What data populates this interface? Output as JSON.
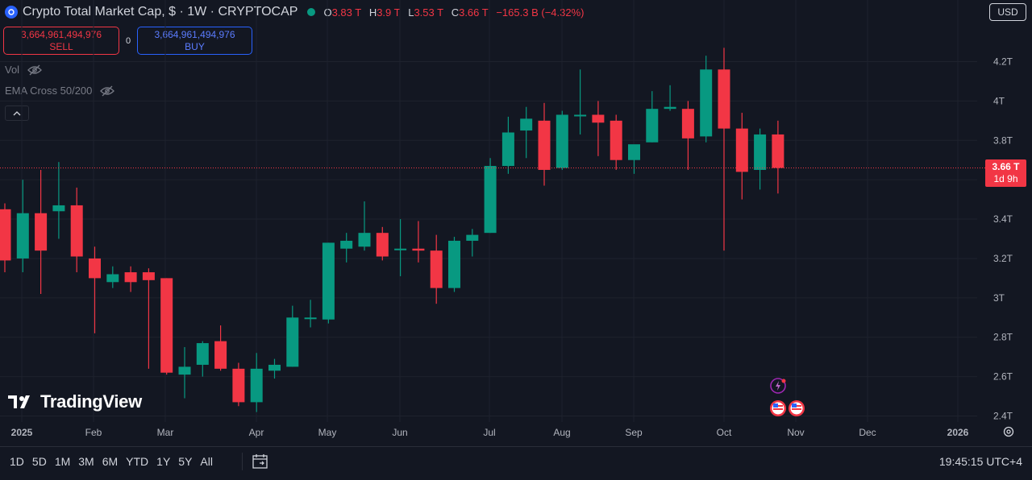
{
  "header": {
    "title": "Crypto Total Market Cap, $ · 1W · CRYPTOCAP",
    "ohlc": [
      {
        "k": "O",
        "v": "3.83 T"
      },
      {
        "k": "H",
        "v": "3.9 T"
      },
      {
        "k": "L",
        "v": "3.53 T"
      },
      {
        "k": "C",
        "v": "3.66 T"
      }
    ],
    "change": "−165.3 B (−4.32%)",
    "currency": "USD"
  },
  "trade": {
    "sell_value": "3,664,961,494,976",
    "sell_label": "SELL",
    "spread": "0",
    "buy_value": "3,664,961,494,976",
    "buy_label": "BUY"
  },
  "indicators": {
    "vol": "Vol",
    "ema": "EMA Cross 50/200"
  },
  "logo_text": "TradingView",
  "price_tag": {
    "price": "3.66 T",
    "countdown": "1d 9h"
  },
  "ranges": [
    "1D",
    "5D",
    "1M",
    "3M",
    "6M",
    "YTD",
    "1Y",
    "5Y",
    "All"
  ],
  "clock": "19:45:15 UTC+4",
  "colors": {
    "up": "#089981",
    "down": "#f23645",
    "background": "#131722",
    "grid": "#1e222d"
  },
  "chart_data": {
    "type": "candlestick",
    "y_unit": "T",
    "ylim": [
      2.37,
      4.35
    ],
    "y_ticks": [
      2.4,
      2.6,
      2.8,
      3.0,
      3.2,
      3.4,
      3.6,
      3.8,
      4.0,
      4.2
    ],
    "y_tick_labels": [
      "2.4T",
      "2.6T",
      "2.8T",
      "3T",
      "3.2T",
      "3.4T",
      "3.6T",
      "3.8T",
      "4T",
      "4.2T"
    ],
    "x_labels": [
      "2025",
      "Feb",
      "Mar",
      "Apr",
      "May",
      "Jun",
      "Jul",
      "Aug",
      "Sep",
      "Oct",
      "Nov",
      "Dec",
      "2026"
    ],
    "last_price": 3.66,
    "candles": [
      {
        "o": 3.45,
        "h": 3.48,
        "l": 3.13,
        "c": 3.19
      },
      {
        "o": 3.2,
        "h": 3.6,
        "l": 3.13,
        "c": 3.43
      },
      {
        "o": 3.43,
        "h": 3.65,
        "l": 3.02,
        "c": 3.24
      },
      {
        "o": 3.44,
        "h": 3.69,
        "l": 3.3,
        "c": 3.47
      },
      {
        "o": 3.47,
        "h": 3.56,
        "l": 3.13,
        "c": 3.21
      },
      {
        "o": 3.2,
        "h": 3.26,
        "l": 2.82,
        "c": 3.1
      },
      {
        "o": 3.08,
        "h": 3.16,
        "l": 3.05,
        "c": 3.12
      },
      {
        "o": 3.13,
        "h": 3.16,
        "l": 3.03,
        "c": 3.08
      },
      {
        "o": 3.13,
        "h": 3.15,
        "l": 2.64,
        "c": 3.09
      },
      {
        "o": 3.1,
        "h": 3.1,
        "l": 2.61,
        "c": 2.62
      },
      {
        "o": 2.61,
        "h": 2.75,
        "l": 2.49,
        "c": 2.65
      },
      {
        "o": 2.66,
        "h": 2.78,
        "l": 2.6,
        "c": 2.77
      },
      {
        "o": 2.78,
        "h": 2.86,
        "l": 2.63,
        "c": 2.64
      },
      {
        "o": 2.64,
        "h": 2.67,
        "l": 2.45,
        "c": 2.47
      },
      {
        "o": 2.47,
        "h": 2.72,
        "l": 2.42,
        "c": 2.64
      },
      {
        "o": 2.63,
        "h": 2.69,
        "l": 2.59,
        "c": 2.66
      },
      {
        "o": 2.65,
        "h": 2.96,
        "l": 2.65,
        "c": 2.9
      },
      {
        "o": 2.9,
        "h": 2.99,
        "l": 2.85,
        "c": 2.9
      },
      {
        "o": 2.89,
        "h": 3.28,
        "l": 2.87,
        "c": 3.28
      },
      {
        "o": 3.25,
        "h": 3.33,
        "l": 3.18,
        "c": 3.29
      },
      {
        "o": 3.26,
        "h": 3.49,
        "l": 3.24,
        "c": 3.33
      },
      {
        "o": 3.33,
        "h": 3.36,
        "l": 3.19,
        "c": 3.21
      },
      {
        "o": 3.25,
        "h": 3.4,
        "l": 3.11,
        "c": 3.25
      },
      {
        "o": 3.25,
        "h": 3.39,
        "l": 3.18,
        "c": 3.24
      },
      {
        "o": 3.24,
        "h": 3.32,
        "l": 2.97,
        "c": 3.05
      },
      {
        "o": 3.05,
        "h": 3.31,
        "l": 3.03,
        "c": 3.29
      },
      {
        "o": 3.29,
        "h": 3.35,
        "l": 3.21,
        "c": 3.32
      },
      {
        "o": 3.33,
        "h": 3.71,
        "l": 3.33,
        "c": 3.67
      },
      {
        "o": 3.67,
        "h": 3.92,
        "l": 3.63,
        "c": 3.84
      },
      {
        "o": 3.85,
        "h": 3.97,
        "l": 3.71,
        "c": 3.91
      },
      {
        "o": 3.9,
        "h": 3.99,
        "l": 3.57,
        "c": 3.65
      },
      {
        "o": 3.66,
        "h": 3.95,
        "l": 3.65,
        "c": 3.93
      },
      {
        "o": 3.93,
        "h": 4.16,
        "l": 3.83,
        "c": 3.93
      },
      {
        "o": 3.93,
        "h": 4.0,
        "l": 3.72,
        "c": 3.89
      },
      {
        "o": 3.9,
        "h": 3.93,
        "l": 3.65,
        "c": 3.7
      },
      {
        "o": 3.7,
        "h": 3.77,
        "l": 3.63,
        "c": 3.78
      },
      {
        "o": 3.79,
        "h": 4.05,
        "l": 3.79,
        "c": 3.96
      },
      {
        "o": 3.96,
        "h": 4.08,
        "l": 3.95,
        "c": 3.97
      },
      {
        "o": 3.96,
        "h": 4.0,
        "l": 3.65,
        "c": 3.81
      },
      {
        "o": 3.82,
        "h": 4.23,
        "l": 3.79,
        "c": 4.16
      },
      {
        "o": 4.16,
        "h": 4.27,
        "l": 3.24,
        "c": 3.86
      },
      {
        "o": 3.86,
        "h": 3.94,
        "l": 3.5,
        "c": 3.64
      },
      {
        "o": 3.65,
        "h": 3.86,
        "l": 3.55,
        "c": 3.83
      },
      {
        "o": 3.83,
        "h": 3.9,
        "l": 3.53,
        "c": 3.66
      }
    ]
  }
}
